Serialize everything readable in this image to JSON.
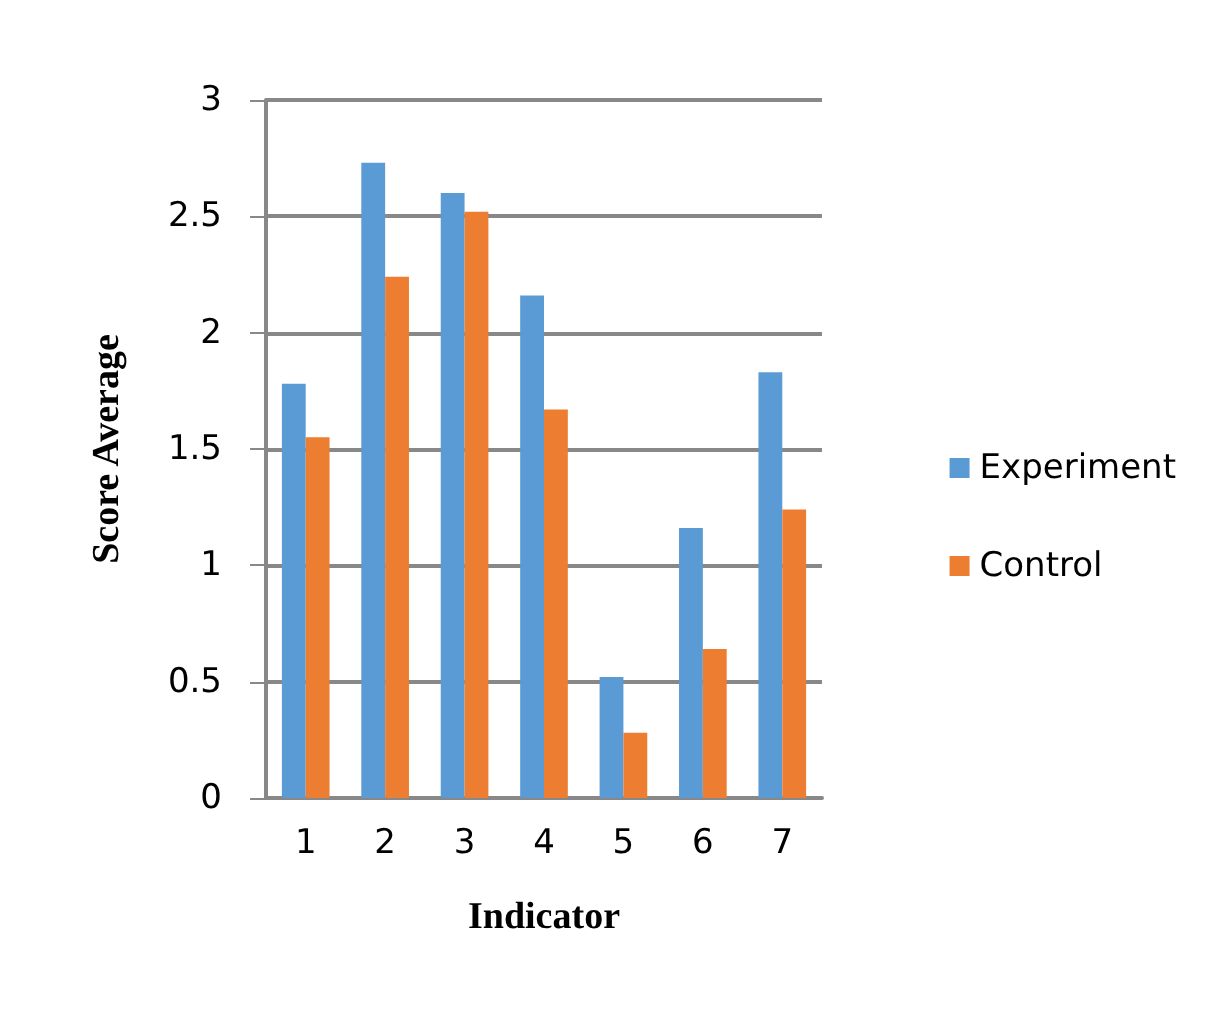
{
  "chart_data": {
    "type": "bar",
    "xlabel": "Indicator",
    "ylabel": "Score Average",
    "categories": [
      "1",
      "2",
      "3",
      "4",
      "5",
      "6",
      "7"
    ],
    "series": [
      {
        "name": "Experiment",
        "color": "#5b9bd5",
        "values": [
          1.78,
          2.73,
          2.6,
          2.16,
          0.52,
          1.16,
          1.83
        ]
      },
      {
        "name": "Control",
        "color": "#ed7d31",
        "values": [
          1.55,
          2.24,
          2.52,
          1.67,
          0.28,
          0.64,
          1.24
        ]
      }
    ],
    "ylim": [
      0,
      3
    ],
    "yticks": [
      0,
      0.5,
      1,
      1.5,
      2,
      2.5,
      3
    ],
    "grid": "y",
    "legend": "right"
  }
}
